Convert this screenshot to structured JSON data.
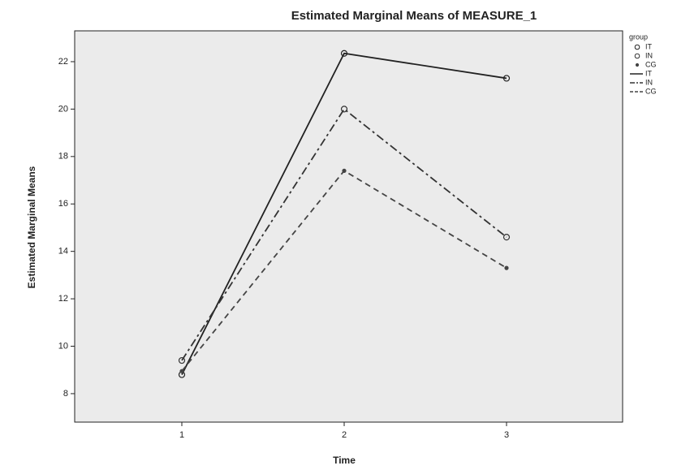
{
  "chart_data": {
    "type": "line",
    "title": "Estimated Marginal Means of MEASURE_1",
    "x_label": "Time",
    "y_label": "Estimated Marginal Means",
    "legend_title": "group",
    "categories": [
      "1",
      "2",
      "3"
    ],
    "series": [
      {
        "name": "IT",
        "color": "#222222",
        "values": [
          8.8,
          22.35,
          21.3
        ]
      },
      {
        "name": "IN",
        "color": "#333333",
        "values": [
          9.4,
          20.0,
          14.6
        ]
      },
      {
        "name": "CG",
        "color": "#444444",
        "values": [
          8.95,
          17.4,
          13.3
        ]
      }
    ],
    "ylim": [
      6.8,
      23.3
    ],
    "yticks": [
      8,
      10,
      12,
      14,
      16,
      18,
      20,
      22
    ],
    "legend_position": "right"
  }
}
